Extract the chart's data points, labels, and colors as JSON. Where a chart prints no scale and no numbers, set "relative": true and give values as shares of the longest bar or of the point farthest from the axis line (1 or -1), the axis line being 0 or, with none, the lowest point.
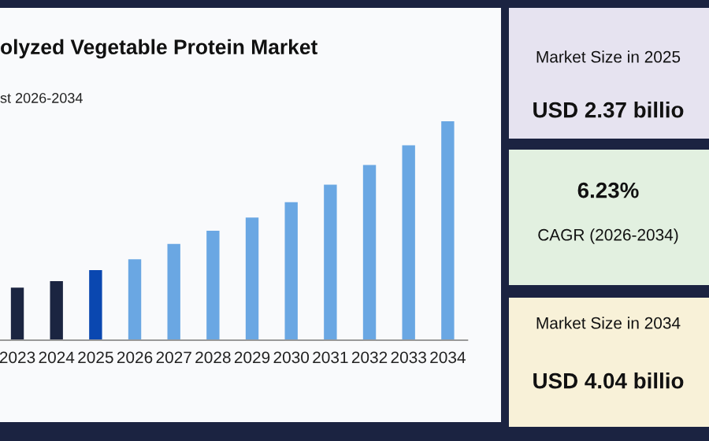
{
  "chart_data": [
    {
      "type": "bar",
      "title": "olyzed Vegetable Protein Market",
      "subtitle": "st 2026-2034",
      "relative": true,
      "categories": [
        "2023",
        "2024",
        "2025",
        "2026",
        "2027",
        "2028",
        "2029",
        "2030",
        "2031",
        "2032",
        "2033",
        "2034"
      ],
      "values": [
        0.24,
        0.27,
        0.32,
        0.37,
        0.44,
        0.5,
        0.56,
        0.63,
        0.71,
        0.8,
        0.89,
        1
      ],
      "colors": [
        "#1b2541",
        "#1b2541",
        "#0a47b0",
        "#6aa7e3",
        "#6aa7e3",
        "#6aa7e3",
        "#6aa7e3",
        "#6aa7e3",
        "#6aa7e3",
        "#6aa7e3",
        "#6aa7e3",
        "#6aa7e3"
      ]
    },
    {
      "type": "other",
      "annotations": [
        "Market Size in 2025",
        "USD 2.37 billio",
        "6.23%",
        "CAGR (2026-2034)",
        "Market Size in 2034",
        "USD 4.04 billio"
      ]
    }
  ]
}
